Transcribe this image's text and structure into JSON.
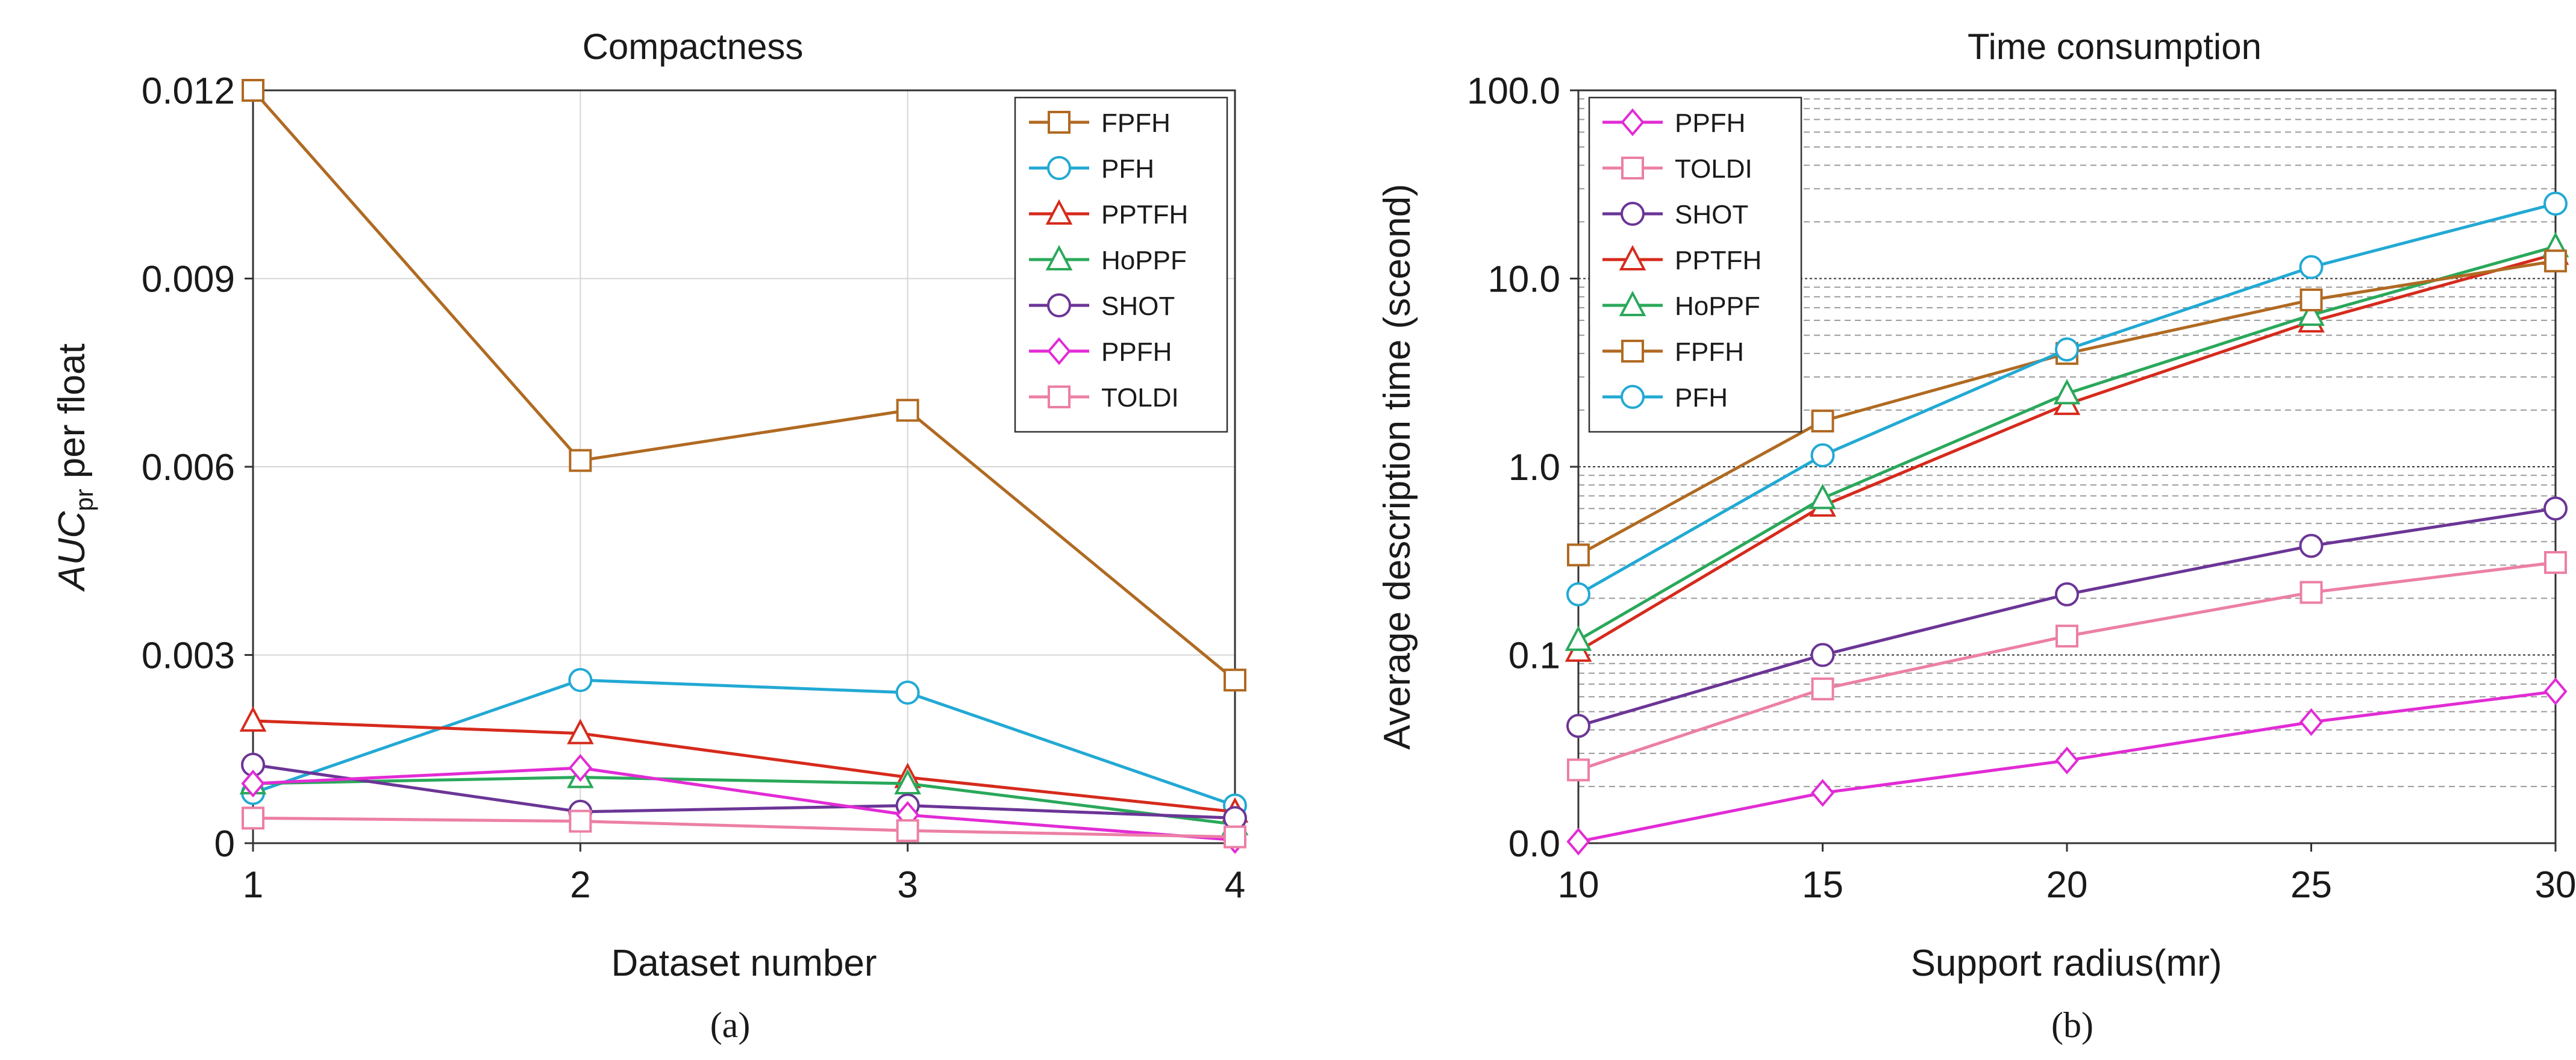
{
  "colors": {
    "FPFH": "#b06a22",
    "PFH": "#22a9d4",
    "PPTFH": "#d62a1c",
    "HoPPF": "#2aa85a",
    "SHOT": "#6b3596",
    "PPFH": "#e22bd5",
    "TOLDI": "#ec7fa6"
  },
  "markers": {
    "FPFH": "square",
    "PFH": "circle",
    "PPTFH": "triangle",
    "HoPPF": "triangle",
    "SHOT": "circle",
    "PPFH": "diamond",
    "TOLDI": "square"
  },
  "chart_data": [
    {
      "type": "line",
      "caption": "(a)",
      "title": "Compactness",
      "xlabel": "Dataset number",
      "ylabel": {
        "italic": "AUC",
        "sub": "pr",
        "rest": " per float"
      },
      "x": [
        1,
        2,
        3,
        4
      ],
      "xticks": [
        "1",
        "2",
        "3",
        "4"
      ],
      "yticks": [
        {
          "value": 0,
          "label": "0"
        },
        {
          "value": 0.003,
          "label": "0.003"
        },
        {
          "value": 0.006,
          "label": "0.006"
        },
        {
          "value": 0.009,
          "label": "0.009"
        },
        {
          "value": 0.012,
          "label": "0.012"
        }
      ],
      "xlim": [
        1,
        4
      ],
      "ylim": [
        0,
        0.012
      ],
      "grid": true,
      "legend_position": "top-right",
      "legend": [
        "FPFH",
        "PFH",
        "PPTFH",
        "HoPPF",
        "SHOT",
        "PPFH",
        "TOLDI"
      ],
      "series": [
        {
          "name": "FPFH",
          "values": [
            0.012,
            0.0061,
            0.0069,
            0.0026
          ]
        },
        {
          "name": "PFH",
          "values": [
            0.0008,
            0.0026,
            0.0024,
            0.0006
          ]
        },
        {
          "name": "PPTFH",
          "values": [
            0.00195,
            0.00175,
            0.00105,
            0.0005
          ]
        },
        {
          "name": "HoPPF",
          "values": [
            0.00095,
            0.00105,
            0.00095,
            0.0003
          ]
        },
        {
          "name": "SHOT",
          "values": [
            0.00125,
            0.0005,
            0.0006,
            0.0004
          ]
        },
        {
          "name": "PPFH",
          "values": [
            0.00095,
            0.0012,
            0.00045,
            5e-05
          ]
        },
        {
          "name": "TOLDI",
          "values": [
            0.0004,
            0.00035,
            0.0002,
            0.0001
          ]
        }
      ]
    },
    {
      "type": "line",
      "caption": "(b)",
      "title": "Time consumption",
      "xlabel": "Support radius(mr)",
      "ylabel": "Average description time (sceond)",
      "yscale": "log",
      "x": [
        10,
        15,
        20,
        25,
        30
      ],
      "xticks": [
        "10",
        "15",
        "20",
        "25",
        "30"
      ],
      "yticks": [
        {
          "value": 0.01,
          "label": "0.0"
        },
        {
          "value": 0.1,
          "label": "0.1"
        },
        {
          "value": 1,
          "label": "1.0"
        },
        {
          "value": 10,
          "label": "10.0"
        },
        {
          "value": 100,
          "label": "100.0"
        }
      ],
      "xlim": [
        10,
        30
      ],
      "ylim": [
        0.01,
        100
      ],
      "grid": true,
      "legend_position": "top-left",
      "legend": [
        "PPFH",
        "TOLDI",
        "SHOT",
        "PPTFH",
        "HoPPF",
        "FPFH",
        "PFH"
      ],
      "series": [
        {
          "name": "PPFH",
          "values": [
            0.0102,
            0.0185,
            0.0275,
            0.044,
            0.064
          ]
        },
        {
          "name": "TOLDI",
          "values": [
            0.0245,
            0.066,
            0.126,
            0.215,
            0.31
          ]
        },
        {
          "name": "SHOT",
          "values": [
            0.042,
            0.1,
            0.21,
            0.38,
            0.6
          ]
        },
        {
          "name": "PPTFH",
          "values": [
            0.105,
            0.62,
            2.15,
            5.9,
            13.5
          ]
        },
        {
          "name": "HoPPF",
          "values": [
            0.12,
            0.68,
            2.45,
            6.4,
            14.8
          ]
        },
        {
          "name": "FPFH",
          "values": [
            0.34,
            1.75,
            4.0,
            7.7,
            12.4
          ]
        },
        {
          "name": "PFH",
          "values": [
            0.21,
            1.15,
            4.2,
            11.5,
            25.0
          ]
        }
      ]
    }
  ]
}
